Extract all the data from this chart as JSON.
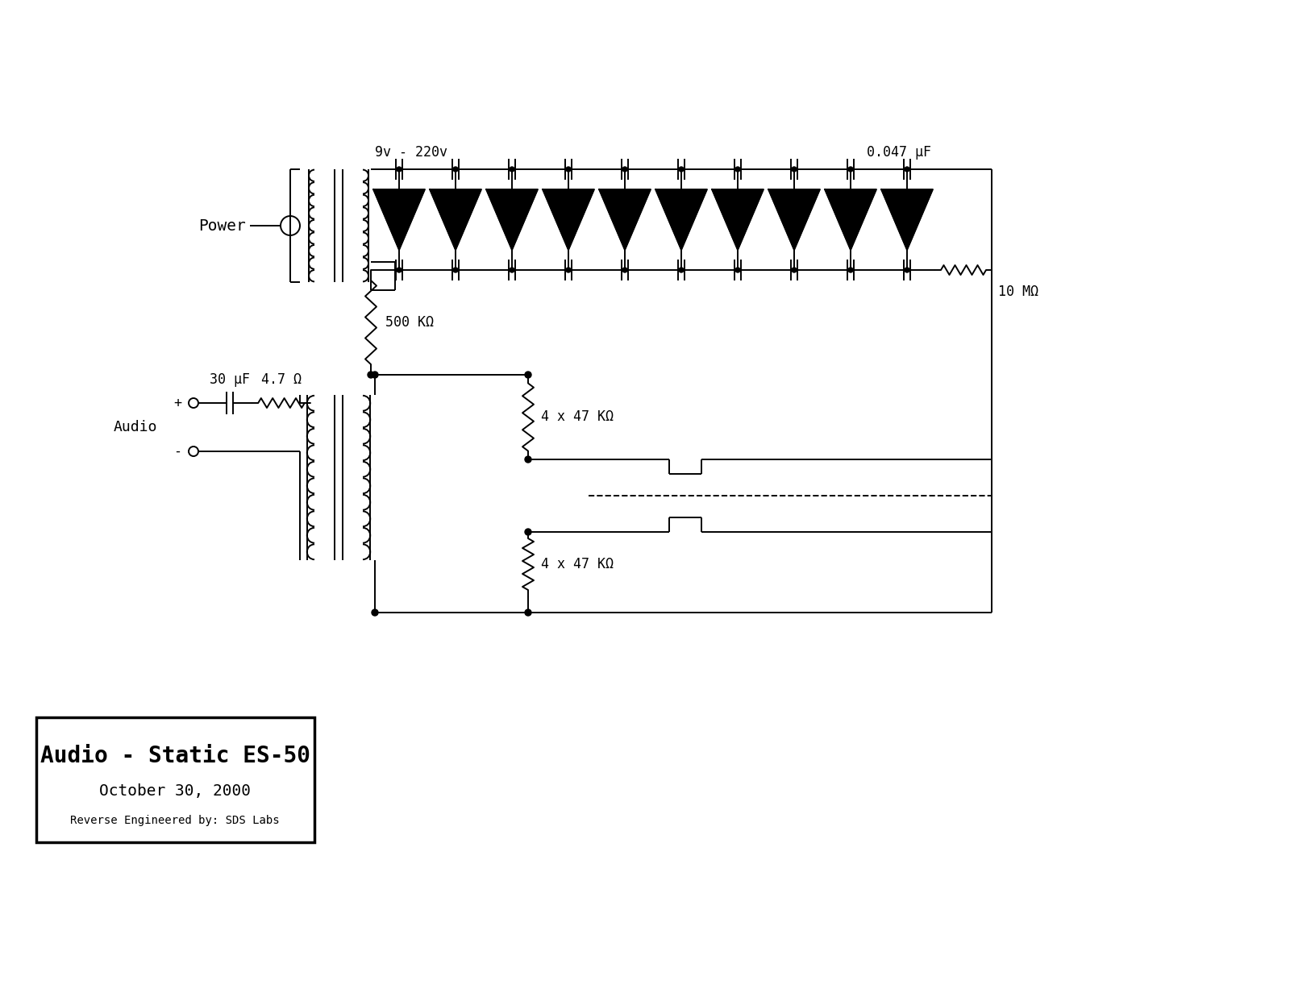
{
  "title": "Audio - Static ES-50",
  "subtitle": "October 30, 2000",
  "credit": "Reverse Engineered by: SDS Labs",
  "bg_color": "#ffffff",
  "line_color": "#000000",
  "label_9v": "9v - 220v",
  "label_power": "Power",
  "label_cap": "0.047 μF",
  "label_10M": "10 MΩ",
  "label_500K": "500 KΩ",
  "label_30uF": "30 μF",
  "label_4p7": "4.7 Ω",
  "label_audio": "Audio",
  "label_plus": "+",
  "label_minus": "-",
  "label_47K_top": "4 x 47 KΩ",
  "label_47K_bot": "4 x 47 KΩ",
  "num_stages": 10,
  "fig_w": 16.0,
  "fig_h": 12.37
}
